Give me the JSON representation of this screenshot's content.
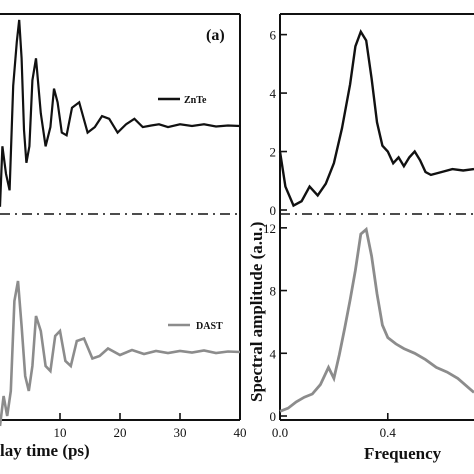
{
  "chart_data": [
    {
      "type": "line",
      "panel": "(a)",
      "xlabel_visible": "lay time (ps)",
      "xticks": [
        10,
        20,
        30,
        40
      ],
      "xlim": [
        0,
        40
      ],
      "grid": false,
      "series": [
        {
          "name": "ZnTe",
          "color": "#111111",
          "x": [
            0,
            0.4,
            1,
            1.6,
            2.2,
            2.8,
            3.2,
            3.6,
            4.0,
            4.4,
            4.9,
            5.4,
            6.0,
            6.8,
            7.6,
            8.4,
            9.0,
            9.6,
            10.3,
            11.1,
            12.0,
            13.2,
            14.6,
            15.8,
            17.0,
            18.2,
            19.6,
            21.0,
            22.4,
            23.8,
            25.2,
            26.5,
            28,
            30,
            32,
            34,
            36,
            38,
            40
          ],
          "y": [
            -0.6,
            0.5,
            0.0,
            -0.3,
            1.6,
            2.4,
            2.8,
            2.1,
            0.8,
            0.2,
            0.5,
            1.7,
            2.1,
            1.1,
            0.5,
            0.85,
            1.55,
            1.3,
            0.75,
            0.7,
            1.2,
            1.3,
            0.75,
            0.85,
            1.05,
            1.0,
            0.75,
            0.9,
            1.0,
            0.85,
            0.88,
            0.9,
            0.85,
            0.9,
            0.87,
            0.9,
            0.86,
            0.88,
            0.87
          ]
        },
        {
          "name": "DAST",
          "color": "#8c8c8c",
          "x": [
            0,
            0.6,
            1.2,
            1.8,
            2.4,
            3.0,
            3.6,
            4.2,
            4.8,
            5.4,
            6.0,
            6.8,
            7.6,
            8.4,
            9.2,
            10.0,
            10.9,
            11.8,
            12.8,
            14.0,
            15.4,
            16.6,
            18,
            20,
            22,
            24,
            26,
            28,
            30,
            32,
            34,
            36,
            38,
            40
          ],
          "y": [
            -0.6,
            0.0,
            -0.4,
            0.1,
            1.9,
            2.3,
            1.4,
            0.4,
            0.1,
            0.6,
            1.6,
            1.3,
            0.6,
            0.5,
            1.2,
            1.3,
            0.7,
            0.6,
            1.1,
            1.15,
            0.75,
            0.8,
            0.95,
            0.82,
            0.92,
            0.84,
            0.9,
            0.86,
            0.9,
            0.87,
            0.91,
            0.86,
            0.89,
            0.88
          ]
        }
      ]
    },
    {
      "type": "line",
      "xlabel_visible": "Frequency",
      "ylabel": "Spectral amplitude (a.u.)",
      "xticks": [
        0.0,
        0.4
      ],
      "xlim": [
        0,
        0.72
      ],
      "upper_panel": {
        "series_name": "ZnTe",
        "ylim": [
          0,
          6.5
        ],
        "yticks": [
          0,
          2,
          4,
          6
        ],
        "x": [
          0.0,
          0.02,
          0.05,
          0.08,
          0.11,
          0.14,
          0.17,
          0.2,
          0.23,
          0.26,
          0.28,
          0.3,
          0.32,
          0.34,
          0.36,
          0.38,
          0.4,
          0.42,
          0.44,
          0.46,
          0.48,
          0.5,
          0.52,
          0.54,
          0.56,
          0.6,
          0.64,
          0.68,
          0.72
        ],
        "values": [
          2.0,
          0.8,
          0.15,
          0.3,
          0.8,
          0.5,
          0.9,
          1.6,
          2.8,
          4.3,
          5.6,
          6.1,
          5.8,
          4.5,
          3.0,
          2.2,
          2.0,
          1.6,
          1.8,
          1.5,
          1.8,
          2.0,
          1.7,
          1.3,
          1.2,
          1.3,
          1.4,
          1.35,
          1.4
        ]
      },
      "lower_panel": {
        "series_name": "DAST",
        "ylim": [
          0,
          12.5
        ],
        "yticks": [
          0,
          4,
          8,
          12
        ],
        "x": [
          0.0,
          0.03,
          0.06,
          0.09,
          0.12,
          0.15,
          0.18,
          0.2,
          0.22,
          0.24,
          0.26,
          0.28,
          0.3,
          0.32,
          0.34,
          0.36,
          0.38,
          0.4,
          0.43,
          0.46,
          0.5,
          0.54,
          0.58,
          0.62,
          0.66,
          0.7,
          0.72
        ],
        "values": [
          0.3,
          0.5,
          0.9,
          1.2,
          1.4,
          2.0,
          3.1,
          2.4,
          3.9,
          5.6,
          7.4,
          9.3,
          11.6,
          11.9,
          10.2,
          7.8,
          5.8,
          5.0,
          4.6,
          4.3,
          4.0,
          3.6,
          3.1,
          2.8,
          2.4,
          1.8,
          1.5
        ]
      }
    }
  ]
}
